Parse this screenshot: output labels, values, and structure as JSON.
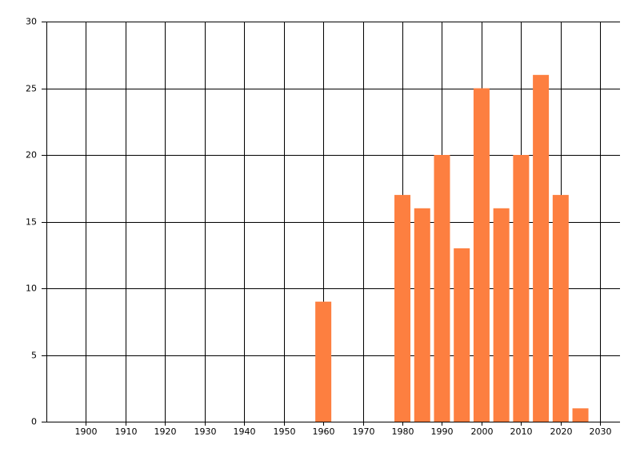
{
  "chart_data": {
    "type": "bar",
    "x": [
      1960,
      1980,
      1985,
      1990,
      1995,
      2000,
      2005,
      2010,
      2015,
      2020,
      2025
    ],
    "values": [
      9,
      17,
      16,
      20,
      13,
      25,
      16,
      20,
      26,
      17,
      1
    ],
    "color": "#fd7f40",
    "xlim": [
      1890,
      2035
    ],
    "xticks": [
      1900,
      1910,
      1920,
      1930,
      1940,
      1950,
      1960,
      1970,
      1980,
      1990,
      2000,
      2010,
      2020,
      2030
    ],
    "ylim": [
      0,
      30
    ],
    "yticks": [
      0,
      5,
      10,
      15,
      20,
      25,
      30
    ],
    "grid": true
  }
}
